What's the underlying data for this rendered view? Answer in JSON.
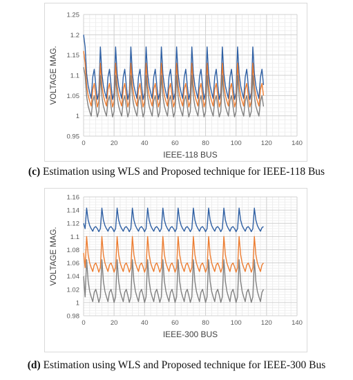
{
  "chart_data": [
    {
      "type": "line",
      "xlabel": "IEEE-118 BUS",
      "ylabel": "VOLTAGE MAG.",
      "xlim": [
        0,
        140
      ],
      "ylim": [
        0.95,
        1.25
      ],
      "xticks": [
        0,
        20,
        40,
        60,
        80,
        100,
        120,
        140
      ],
      "yticks": [
        0.95,
        1,
        1.05,
        1.1,
        1.15,
        1.2,
        1.25
      ],
      "ytick_labels": [
        "0.95",
        "1",
        "1.05",
        "1.1",
        "1.15",
        "1.2",
        "1.25"
      ],
      "grid": true,
      "x_end": 118,
      "period": 10,
      "first_peak": 1,
      "series": [
        {
          "color": "#2e5fa3",
          "start": 1.2,
          "peak": 1.17,
          "base": 1.05,
          "secondary": 1.115
        },
        {
          "color": "#ed7d31",
          "start": 1.16,
          "peak": 1.13,
          "base": 1.03,
          "secondary": 1.08
        },
        {
          "color": "#808080",
          "start": 1.12,
          "peak": 1.1,
          "base": 1.005,
          "secondary": 1.05
        }
      ],
      "caption_label": "(c)",
      "caption_text": " Estimation using WLS and Proposed technique for IEEE-118 Bus"
    },
    {
      "type": "line",
      "xlabel": "IEEE-300 BUS",
      "ylabel": "VOLTAGE MAG.",
      "xlim": [
        0,
        140
      ],
      "ylim": [
        0.98,
        1.16
      ],
      "xticks": [
        0,
        20,
        40,
        60,
        80,
        100,
        120,
        140
      ],
      "yticks": [
        0.98,
        1,
        1.02,
        1.04,
        1.06,
        1.08,
        1.1,
        1.12,
        1.14,
        1.16
      ],
      "ytick_labels": [
        "0.98",
        "1",
        "1.02",
        "1.04",
        "1.06",
        "1.08",
        "1.1",
        "1.12",
        "1.14",
        "1.16"
      ],
      "grid": true,
      "x_end": 118,
      "period": 10,
      "first_peak": 2,
      "series": [
        {
          "color": "#2e5fa3",
          "start": 1.12,
          "peak": 1.143,
          "base": 1.11,
          "secondary": 1.115
        },
        {
          "color": "#ed7d31",
          "start": 1.075,
          "peak": 1.1,
          "base": 1.05,
          "secondary": 1.06
        },
        {
          "color": "#808080",
          "start": 1.04,
          "peak": 1.065,
          "base": 1.005,
          "secondary": 1.02
        }
      ],
      "caption_label": "(d)",
      "caption_text": " Estimation using WLS and Proposed technique for IEEE-300 Bus"
    }
  ]
}
